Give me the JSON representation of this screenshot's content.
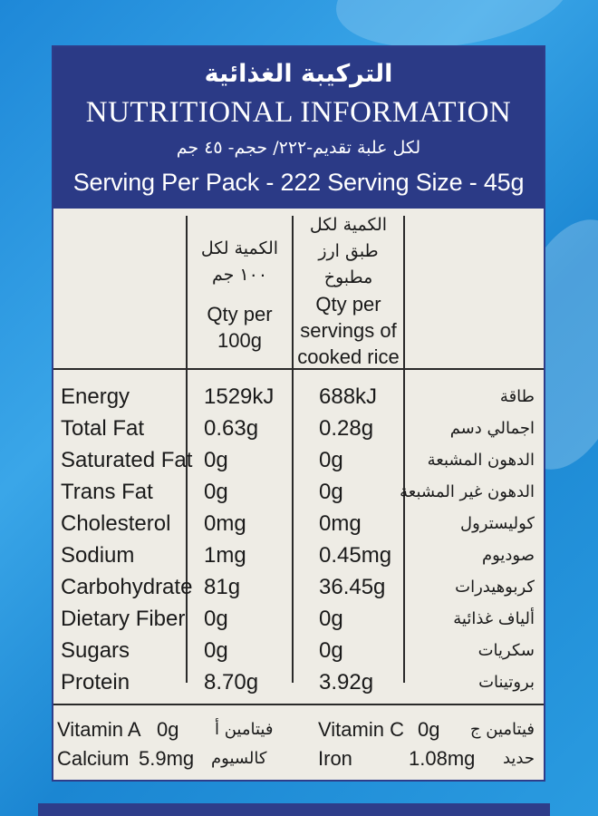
{
  "header": {
    "title_ar": "التركيبة الغذائية",
    "title_en": "NUTRITIONAL INFORMATION",
    "serving_ar": "لكل علبة تقديم-٢٢٢/ حجم- ٤٥ جم",
    "serving_en": "Serving Per Pack - 222  Serving Size - 45g"
  },
  "columns": {
    "per100_ar_line1": "الكمية لكل",
    "per100_ar_line2": "١٠٠ جم",
    "per100_en_line1": "Qty per",
    "per100_en_line2": "100g",
    "serving_ar_line1": "الكمية لكل",
    "serving_ar_line2": "طبق ارز",
    "serving_ar_line3": "مطبوخ",
    "serving_en_line1": "Qty per",
    "serving_en_line2": "servings of",
    "serving_en_line3": "cooked rice"
  },
  "nutrients": [
    {
      "name": "Energy",
      "per100": "1529kJ",
      "per_serving": "688kJ",
      "name_ar": "طاقة"
    },
    {
      "name": "Total Fat",
      "per100": "0.63g",
      "per_serving": "0.28g",
      "name_ar": "اجمالي دسم"
    },
    {
      "name": "Saturated Fat",
      "per100": "0g",
      "per_serving": "0g",
      "name_ar": "الدهون المشبعة"
    },
    {
      "name": "Trans Fat",
      "per100": "0g",
      "per_serving": "0g",
      "name_ar": "الدهون غير المشبعة"
    },
    {
      "name": "Cholesterol",
      "per100": "0mg",
      "per_serving": "0mg",
      "name_ar": "كوليسترول"
    },
    {
      "name": "Sodium",
      "per100": "1mg",
      "per_serving": "0.45mg",
      "name_ar": "صوديوم"
    },
    {
      "name": "Carbohydrate",
      "per100": "81g",
      "per_serving": "36.45g",
      "name_ar": "كربوهيدرات"
    },
    {
      "name": "Dietary Fiber",
      "per100": "0g",
      "per_serving": "0g",
      "name_ar": "ألياف غذائية"
    },
    {
      "name": "Sugars",
      "per100": "0g",
      "per_serving": "0g",
      "name_ar": "سكريات"
    },
    {
      "name": "Protein",
      "per100": "8.70g",
      "per_serving": "3.92g",
      "name_ar": "بروتينات"
    }
  ],
  "vitamins": {
    "vitamin_a_label": "Vitamin A",
    "vitamin_a_value": "0g",
    "vitamin_a_ar": "فيتامين أ",
    "vitamin_c_label": "Vitamin C",
    "vitamin_c_value": "0g",
    "vitamin_c_ar": "فيتامين ج",
    "calcium_label": "Calcium",
    "calcium_value": "5.9mg",
    "calcium_ar": "كالسيوم",
    "iron_label": "Iron",
    "iron_value": "1.08mg",
    "iron_ar": "حديد"
  },
  "colors": {
    "header_bg": "#2b3a86",
    "card_bg": "#eeece5",
    "package_blue": "#1e88d8"
  }
}
